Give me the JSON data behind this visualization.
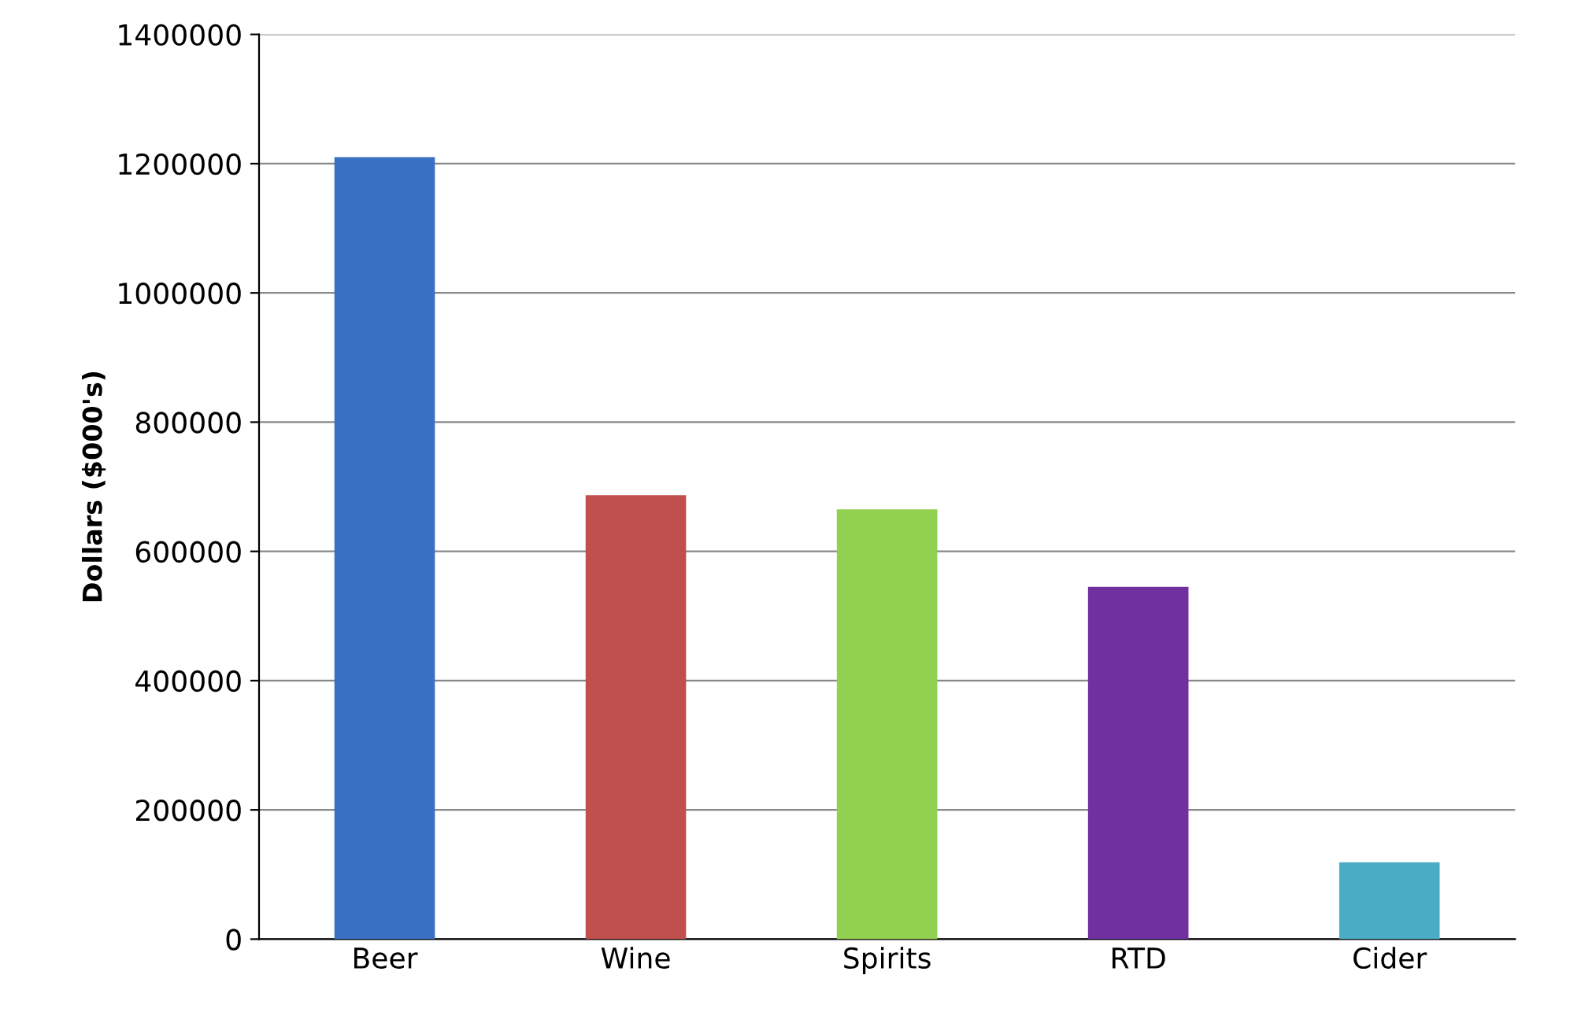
{
  "chart_data": {
    "type": "bar",
    "ylabel": "Dollars ($000's)",
    "categories": [
      "Beer",
      "Wine",
      "Spirits",
      "RTD",
      "Cider"
    ],
    "values": [
      1210000,
      687000,
      665000,
      545000,
      119000
    ],
    "colors": [
      "#3a70c4",
      "#c0504d",
      "#92d050",
      "#7030a0",
      "#4bacc6"
    ],
    "ylim": [
      0,
      1400000
    ],
    "yticks": [
      0,
      200000,
      400000,
      600000,
      800000,
      1000000,
      1200000,
      1400000
    ],
    "grid": "y",
    "legend": false
  }
}
